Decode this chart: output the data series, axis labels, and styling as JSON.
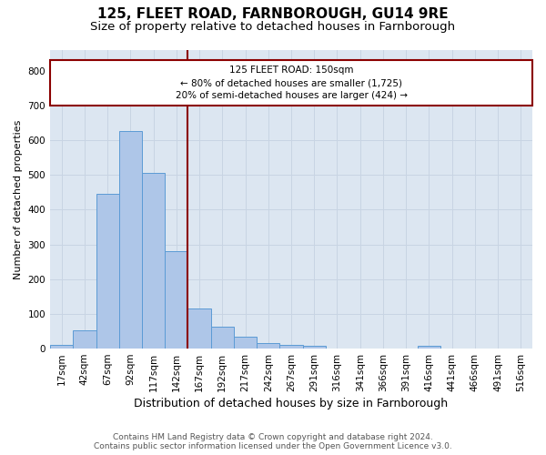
{
  "title1": "125, FLEET ROAD, FARNBOROUGH, GU14 9RE",
  "title2": "Size of property relative to detached houses in Farnborough",
  "xlabel": "Distribution of detached houses by size in Farnborough",
  "ylabel": "Number of detached properties",
  "categories": [
    "17sqm",
    "42sqm",
    "67sqm",
    "92sqm",
    "117sqm",
    "142sqm",
    "167sqm",
    "192sqm",
    "217sqm",
    "242sqm",
    "267sqm",
    "291sqm",
    "316sqm",
    "341sqm",
    "366sqm",
    "391sqm",
    "416sqm",
    "441sqm",
    "466sqm",
    "491sqm",
    "516sqm"
  ],
  "values": [
    10,
    52,
    447,
    627,
    505,
    280,
    115,
    62,
    33,
    17,
    10,
    7,
    0,
    0,
    0,
    0,
    7,
    0,
    0,
    0,
    0
  ],
  "bar_color": "#aec6e8",
  "bar_edge_color": "#5b9bd5",
  "bar_width": 1.0,
  "vline_color": "#8b0000",
  "annotation_line1": "125 FLEET ROAD: 150sqm",
  "annotation_line2": "← 80% of detached houses are smaller (1,725)",
  "annotation_line3": "20% of semi-detached houses are larger (424) →",
  "annotation_box_color": "#8b0000",
  "ylim": [
    0,
    860
  ],
  "yticks": [
    0,
    100,
    200,
    300,
    400,
    500,
    600,
    700,
    800
  ],
  "grid_color": "#c8d4e3",
  "background_color": "#dce6f1",
  "footnote": "Contains HM Land Registry data © Crown copyright and database right 2024.\nContains public sector information licensed under the Open Government Licence v3.0.",
  "title1_fontsize": 11,
  "title2_fontsize": 9.5,
  "xlabel_fontsize": 9,
  "ylabel_fontsize": 8,
  "tick_fontsize": 7.5,
  "footnote_fontsize": 6.5,
  "annot_fontsize": 7.5
}
